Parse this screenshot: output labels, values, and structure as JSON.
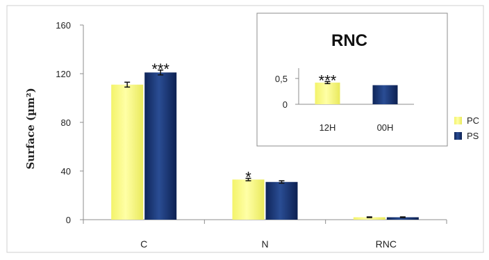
{
  "chart_data": [
    {
      "type": "bar",
      "title": "",
      "xlabel": "",
      "ylabel": "Surface (µm²)",
      "ylim": [
        0,
        160
      ],
      "yticks": [
        "0",
        "40",
        "80",
        "120",
        "160"
      ],
      "categories": [
        "C",
        "N",
        "RNC"
      ],
      "series": [
        {
          "name": "PC",
          "values": [
            111,
            33,
            2
          ],
          "errors": [
            2,
            1,
            0.3
          ]
        },
        {
          "name": "PS",
          "values": [
            121,
            31,
            2
          ],
          "errors": [
            2,
            1,
            0.3
          ]
        }
      ],
      "significance": [
        "***",
        "*",
        ""
      ],
      "legend": "right",
      "colors": {
        "PC": "#ffff80",
        "PS": "#14306e"
      }
    },
    {
      "type": "bar",
      "title": "RNC",
      "yticks": [
        "0",
        "0,5"
      ],
      "ylim": [
        0,
        0.7
      ],
      "categories": [
        "12H",
        "00H"
      ],
      "values": [
        0.42,
        0.37
      ],
      "errors": [
        0.02,
        0
      ],
      "significance": [
        "***",
        ""
      ],
      "colors": [
        "#ffff80",
        "#14306e"
      ]
    }
  ]
}
